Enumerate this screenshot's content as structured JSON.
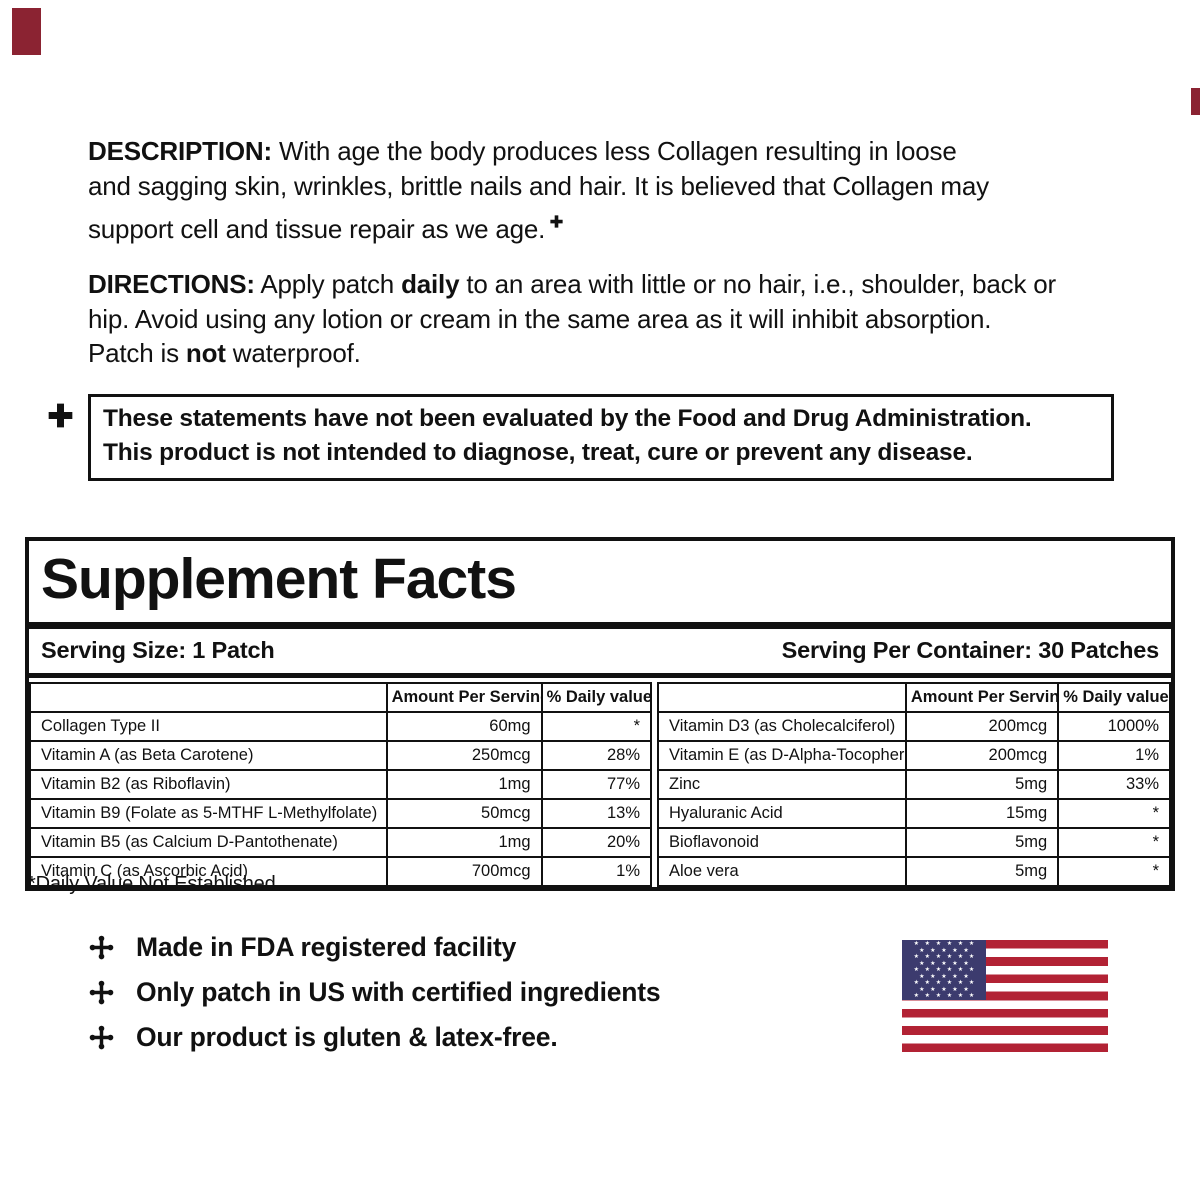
{
  "colors": {
    "ink": "#111111",
    "flag_red": "#b22234",
    "flag_blue": "#3c3b6e",
    "mark_red": "#8b2332"
  },
  "description": {
    "label": "DESCRIPTION:",
    "l1": " With age the body produces less Collagen resulting in loose",
    "l2": "and sagging skin, wrinkles, brittle nails and hair. It is believed that Collagen may",
    "l3": "support cell and tissue repair as we age.",
    "sup_icon": "heavy-plus"
  },
  "directions": {
    "label": "DIRECTIONS:",
    "l1a": " Apply patch ",
    "l1b": "daily",
    "l1c": " to an area with little or no hair, i.e., shoulder, back or",
    "l2": "hip. Avoid using any lotion or cream in the same area as it will inhibit absorption.",
    "l3a": "Patch is ",
    "l3b": "not",
    "l3c": " waterproof."
  },
  "disclaimer": {
    "icon": "heavy-plus",
    "l1": "These statements have not been evaluated by the Food and Drug Administration.",
    "l2": "This product is not intended to diagnose, treat, cure or prevent any disease."
  },
  "panel": {
    "title": "Supplement Facts",
    "serving_size": "Serving Size: 1 Patch",
    "servings_per_container": "Serving Per Container: 30 Patches",
    "columns": [
      "",
      "Amount Per Serving",
      "% Daily value"
    ],
    "left_rows": [
      {
        "name": "Collagen Type II",
        "amount": "60mg",
        "dv": "*"
      },
      {
        "name": "Vitamin A (as Beta Carotene)",
        "amount": "250mcg",
        "dv": "28%"
      },
      {
        "name": "Vitamin B2 (as Riboflavin)",
        "amount": "1mg",
        "dv": "77%"
      },
      {
        "name": "Vitamin B9 (Folate as 5-MTHF L-Methylfolate)",
        "amount": "50mcg",
        "dv": "13%"
      },
      {
        "name": "Vitamin B5 (as Calcium D-Pantothenate)",
        "amount": "1mg",
        "dv": "20%"
      },
      {
        "name": "Vitamin C (as Ascorbic Acid)",
        "amount": "700mcg",
        "dv": "1%"
      }
    ],
    "right_rows": [
      {
        "name": "Vitamin D3 (as Cholecalciferol)",
        "amount": "200mcg",
        "dv": "1000%"
      },
      {
        "name": "Vitamin E (as D-Alpha-Tocopherol)",
        "amount": "200mcg",
        "dv": "1%"
      },
      {
        "name": "Zinc",
        "amount": "5mg",
        "dv": "33%"
      },
      {
        "name": "Hyaluranic Acid",
        "amount": "15mg",
        "dv": "*"
      },
      {
        "name": "Bioflavonoid",
        "amount": "5mg",
        "dv": "*"
      },
      {
        "name": "Aloe vera",
        "amount": "5mg",
        "dv": "*"
      }
    ]
  },
  "footnote": "*Daily Value Not Established.",
  "footer": {
    "icon": "cross-pommee",
    "items": [
      "Made in FDA registered facility",
      "Only patch in US with certified ingredients",
      "Our product is gluten & latex-free."
    ]
  },
  "flag": {
    "name": "us-flag",
    "stripes": 13,
    "star_rows": [
      6,
      5,
      6,
      5,
      6,
      5,
      6,
      5,
      6
    ]
  }
}
